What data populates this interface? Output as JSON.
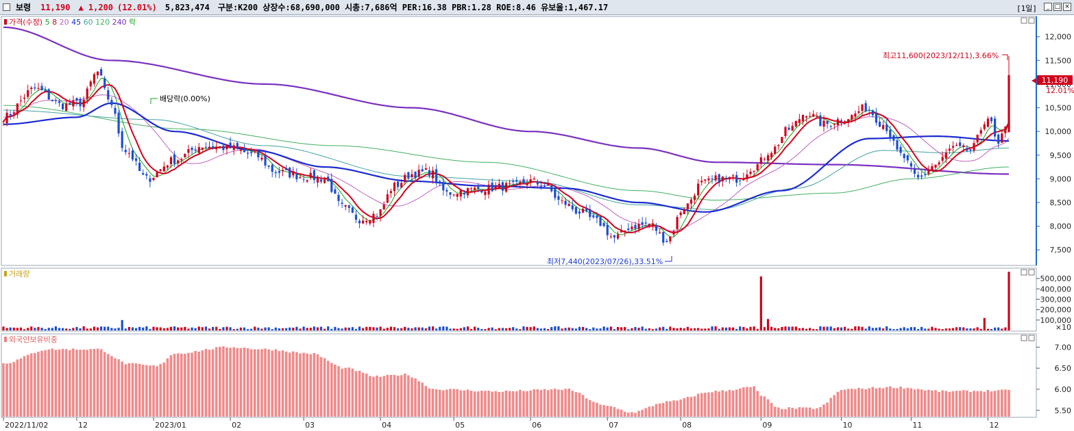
{
  "header": {
    "name": "보령",
    "price": "11,190",
    "change": "▲ 1,200",
    "change_pct": "(12.01%)",
    "volume": "5,823,474",
    "info": "구분:K200 상장수:68,690,000 시총:7,686억 PER:16.38 PBR:1.28 ROE:8.46 유보율:1,467.17",
    "period": "[1일]"
  },
  "price_panel": {
    "legend": [
      {
        "text": "가격(수정)",
        "color": "#d0021b"
      },
      {
        "text": "5",
        "color": "#18a018"
      },
      {
        "text": "8",
        "color": "#d0021b"
      },
      {
        "text": "20",
        "color": "#c060c0"
      },
      {
        "text": "45",
        "color": "#1a2ad0"
      },
      {
        "text": "60",
        "color": "#40a0a0"
      },
      {
        "text": "120",
        "color": "#40b060"
      },
      {
        "text": "240",
        "color": "#7a2fc0"
      },
      {
        "text": "락",
        "color": "#18a018"
      }
    ],
    "dividend_label": "배당락(0.00%)",
    "high_label": "최고11,600(2023/12/11),3.66%",
    "low_label": "최저7,440(2023/07/26),33.51%",
    "current_price_tag": "11,190",
    "current_pct_tag": "12.01%",
    "y_ticks": [
      "12,000",
      "11,500",
      "11,000",
      "10,500",
      "10,000",
      "9,500",
      "9,000",
      "8,500",
      "8,000",
      "7,500"
    ]
  },
  "volume_panel": {
    "title": "거래량",
    "y_ticks": [
      "500,000",
      "400,000",
      "300,000",
      "200,000",
      "100,000"
    ],
    "unit": "×10"
  },
  "foreign_panel": {
    "title": "외국인보유비중",
    "y_ticks": [
      "7.00",
      "6.50",
      "6.00",
      "5.50"
    ]
  },
  "x_axis": [
    "2022/11/02",
    "12",
    "2023/01",
    "02",
    "03",
    "04",
    "05",
    "06",
    "07",
    "08",
    "09",
    "10",
    "11",
    "12"
  ],
  "chart_data": {
    "type": "candlestick",
    "title": "",
    "price_ylim": [
      7200,
      12400
    ],
    "close_anchors": [
      [
        "2022-11-02",
        10300
      ],
      [
        "2022-11-15",
        10900
      ],
      [
        "2022-11-25",
        10550
      ],
      [
        "2022-12-02",
        10600
      ],
      [
        "2022-12-09",
        11250
      ],
      [
        "2022-12-14",
        10700
      ],
      [
        "2022-12-21",
        9600
      ],
      [
        "2022-12-29",
        9000
      ],
      [
        "2023-01-10",
        9400
      ],
      [
        "2023-01-20",
        9700
      ],
      [
        "2023-02-01",
        9650
      ],
      [
        "2023-02-10",
        9500
      ],
      [
        "2023-02-20",
        9150
      ],
      [
        "2023-03-02",
        9050
      ],
      [
        "2023-03-10",
        9000
      ],
      [
        "2023-03-17",
        8400
      ],
      [
        "2023-03-24",
        8150
      ],
      [
        "2023-03-31",
        8250
      ],
      [
        "2023-04-07",
        8850
      ],
      [
        "2023-04-14",
        9100
      ],
      [
        "2023-04-21",
        9150
      ],
      [
        "2023-04-28",
        8700
      ],
      [
        "2023-05-05",
        8750
      ],
      [
        "2023-05-15",
        8800
      ],
      [
        "2023-05-25",
        8850
      ],
      [
        "2023-06-01",
        8950
      ],
      [
        "2023-06-07",
        8850
      ],
      [
        "2023-06-14",
        8500
      ],
      [
        "2023-06-21",
        8300
      ],
      [
        "2023-06-28",
        8100
      ],
      [
        "2023-07-05",
        7750
      ],
      [
        "2023-07-12",
        8000
      ],
      [
        "2023-07-19",
        8050
      ],
      [
        "2023-07-26",
        7700
      ],
      [
        "2023-08-02",
        8400
      ],
      [
        "2023-08-09",
        8900
      ],
      [
        "2023-08-16",
        9000
      ],
      [
        "2023-08-23",
        9000
      ],
      [
        "2023-08-30",
        9250
      ],
      [
        "2023-09-06",
        9600
      ],
      [
        "2023-09-13",
        10050
      ],
      [
        "2023-09-20",
        10400
      ],
      [
        "2023-09-27",
        10150
      ],
      [
        "2023-10-06",
        10300
      ],
      [
        "2023-10-13",
        10500
      ],
      [
        "2023-10-20",
        10150
      ],
      [
        "2023-10-27",
        9500
      ],
      [
        "2023-11-03",
        9000
      ],
      [
        "2023-11-10",
        9300
      ],
      [
        "2023-11-17",
        9650
      ],
      [
        "2023-11-24",
        9600
      ],
      [
        "2023-12-01",
        10300
      ],
      [
        "2023-12-06",
        9700
      ],
      [
        "2023-12-08",
        10050
      ],
      [
        "2023-12-11",
        11190
      ]
    ],
    "ma240_anchors": [
      [
        "2022-11-02",
        12200
      ],
      [
        "2022-12-15",
        11500
      ],
      [
        "2023-02-15",
        11000
      ],
      [
        "2023-04-15",
        10500
      ],
      [
        "2023-06-01",
        10000
      ],
      [
        "2023-07-15",
        9650
      ],
      [
        "2023-08-15",
        9350
      ],
      [
        "2023-10-01",
        9300
      ],
      [
        "2023-12-11",
        9100
      ]
    ],
    "ma45_anchors": [
      [
        "2022-11-02",
        10150
      ],
      [
        "2022-12-01",
        10300
      ],
      [
        "2022-12-15",
        10600
      ],
      [
        "2023-01-10",
        10000
      ],
      [
        "2023-02-10",
        9600
      ],
      [
        "2023-03-10",
        9250
      ],
      [
        "2023-04-15",
        8950
      ],
      [
        "2023-05-15",
        8850
      ],
      [
        "2023-06-15",
        8800
      ],
      [
        "2023-07-15",
        8500
      ],
      [
        "2023-08-10",
        8300
      ],
      [
        "2023-09-10",
        8750
      ],
      [
        "2023-10-15",
        9850
      ],
      [
        "2023-11-10",
        9900
      ],
      [
        "2023-12-11",
        9800
      ]
    ],
    "ma120_anchors": [
      [
        "2022-11-02",
        10550
      ],
      [
        "2023-01-15",
        10050
      ],
      [
        "2023-03-15",
        9700
      ],
      [
        "2023-05-15",
        9350
      ],
      [
        "2023-07-15",
        8750
      ],
      [
        "2023-08-15",
        8550
      ],
      [
        "2023-10-01",
        8700
      ],
      [
        "2023-11-01",
        9000
      ],
      [
        "2023-12-11",
        9250
      ]
    ],
    "ma60_anchors": [
      [
        "2022-11-02",
        10450
      ],
      [
        "2023-01-01",
        10250
      ],
      [
        "2023-02-15",
        9700
      ],
      [
        "2023-04-15",
        9050
      ],
      [
        "2023-06-01",
        8950
      ],
      [
        "2023-07-15",
        8450
      ],
      [
        "2023-08-15",
        8350
      ],
      [
        "2023-09-15",
        8800
      ],
      [
        "2023-10-20",
        9600
      ],
      [
        "2023-11-15",
        9550
      ],
      [
        "2023-12-11",
        9650
      ]
    ],
    "volume_ylim": [
      0,
      560000
    ],
    "volume_spikes": [
      [
        "2023-09-01",
        520000
      ],
      [
        "2023-12-11",
        565000
      ],
      [
        "2023-11-30",
        120000
      ],
      [
        "2023-09-05",
        110000
      ],
      [
        "2022-12-20",
        100000
      ]
    ],
    "foreign_ylim": [
      5.35,
      7.25
    ],
    "foreign_anchors": [
      [
        "2022-11-02",
        6.62
      ],
      [
        "2022-11-20",
        6.95
      ],
      [
        "2022-12-10",
        6.95
      ],
      [
        "2022-12-22",
        6.6
      ],
      [
        "2023-01-03",
        6.55
      ],
      [
        "2023-01-10",
        6.85
      ],
      [
        "2023-02-01",
        7.0
      ],
      [
        "2023-02-15",
        6.95
      ],
      [
        "2023-03-05",
        6.85
      ],
      [
        "2023-03-20",
        6.5
      ],
      [
        "2023-04-01",
        6.3
      ],
      [
        "2023-04-12",
        6.35
      ],
      [
        "2023-04-25",
        6.0
      ],
      [
        "2023-05-20",
        5.95
      ],
      [
        "2023-06-15",
        6.0
      ],
      [
        "2023-07-03",
        5.6
      ],
      [
        "2023-07-12",
        5.45
      ],
      [
        "2023-07-26",
        5.7
      ],
      [
        "2023-08-15",
        5.95
      ],
      [
        "2023-08-30",
        6.05
      ],
      [
        "2023-09-01",
        5.85
      ],
      [
        "2023-09-08",
        5.55
      ],
      [
        "2023-09-25",
        5.55
      ],
      [
        "2023-10-05",
        6.0
      ],
      [
        "2023-10-25",
        6.05
      ],
      [
        "2023-11-15",
        5.95
      ],
      [
        "2023-12-11",
        5.97
      ]
    ]
  }
}
